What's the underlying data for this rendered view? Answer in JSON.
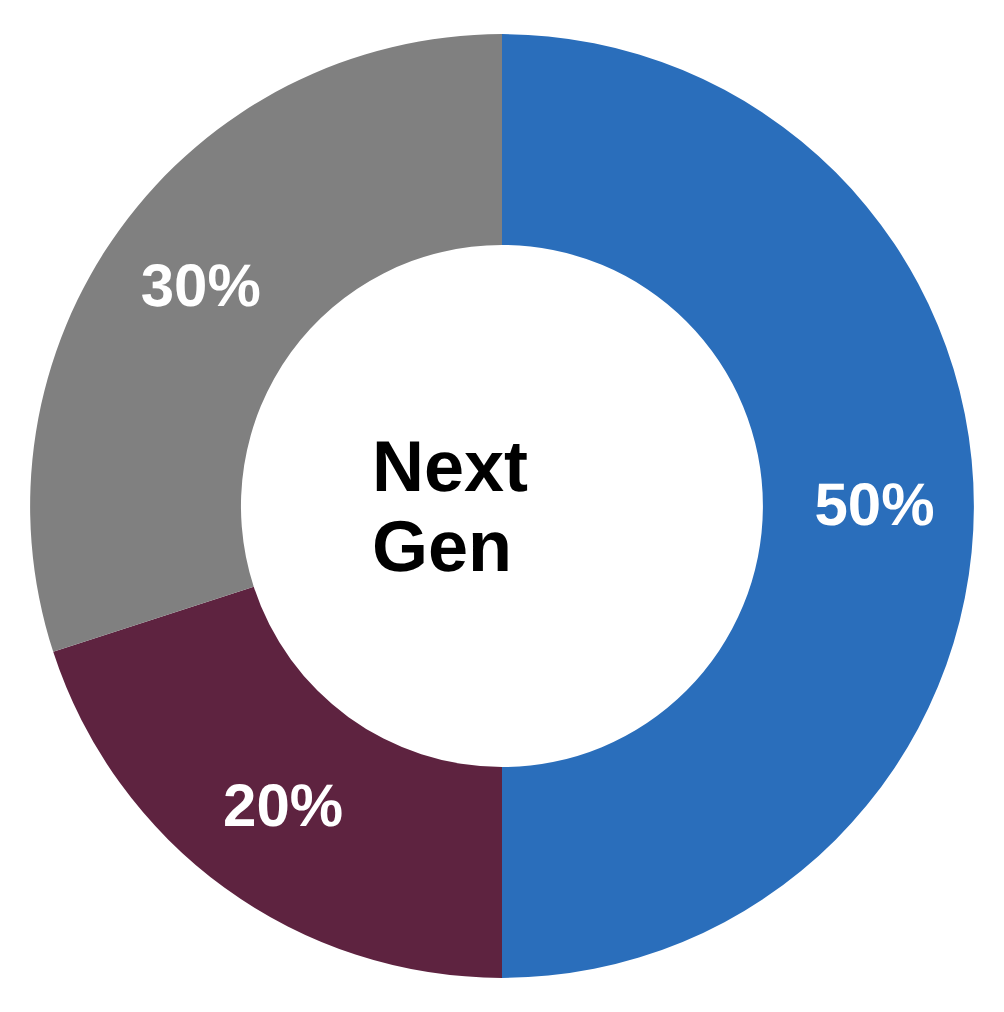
{
  "chart_data": {
    "type": "donut",
    "title": "Next Gen",
    "categories": [
      null,
      null,
      null
    ],
    "values": [
      50,
      20,
      30
    ],
    "colors": [
      "#2a6ebb",
      "#5e2340",
      "#808080"
    ],
    "value_labels": [
      "50%",
      "20%",
      "30%"
    ]
  }
}
